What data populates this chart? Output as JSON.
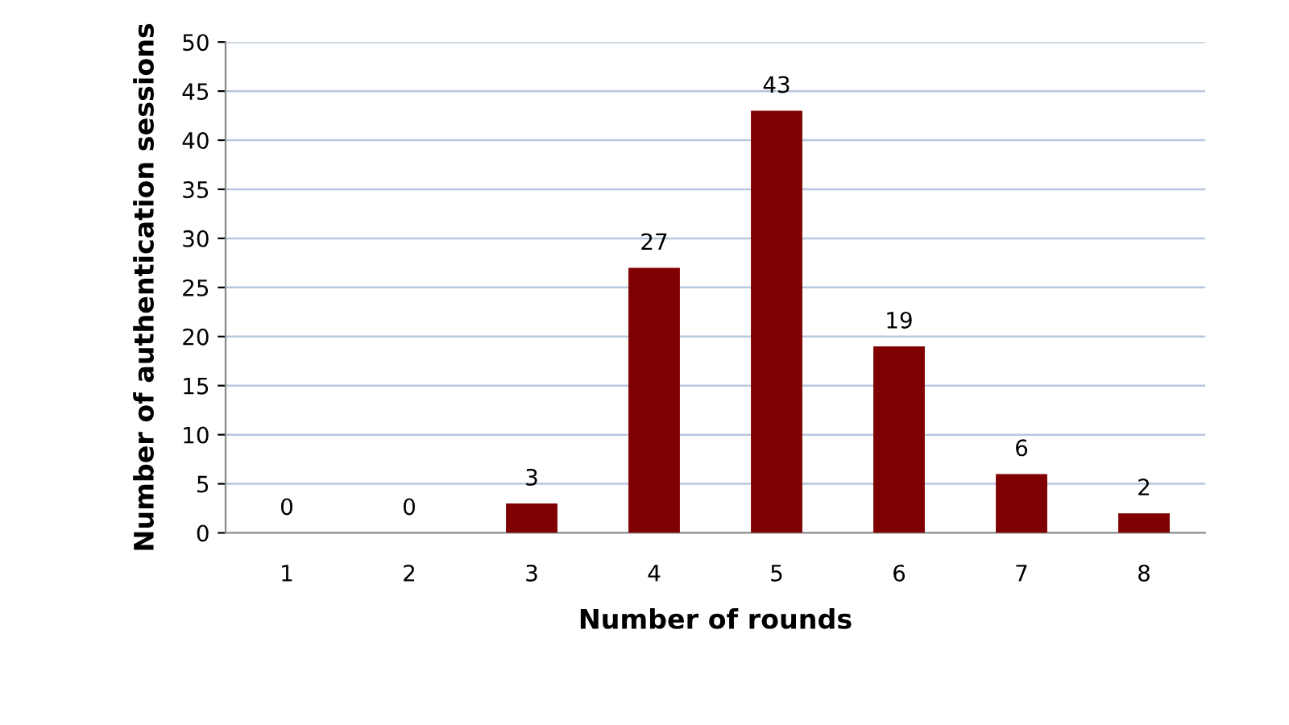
{
  "chart_data": {
    "type": "bar",
    "xlabel": "Number of rounds",
    "ylabel": "Number of authentication sessions",
    "categories": [
      "1",
      "2",
      "3",
      "4",
      "5",
      "6",
      "7",
      "8"
    ],
    "values": [
      0,
      0,
      3,
      27,
      43,
      19,
      6,
      2
    ],
    "color": "#7f0000",
    "ylim": [
      0,
      50
    ],
    "yticks": [
      0,
      5,
      10,
      15,
      20,
      25,
      30,
      35,
      40,
      45,
      50
    ],
    "grid": "y",
    "data_labels": true
  }
}
